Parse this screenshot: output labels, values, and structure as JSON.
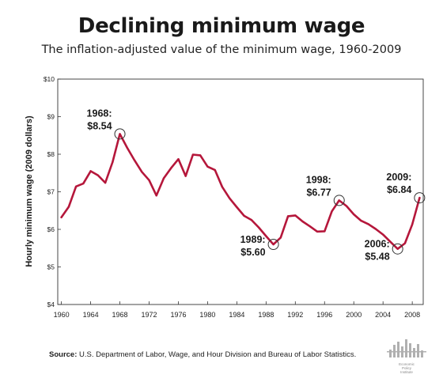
{
  "chart_data": {
    "type": "line",
    "title": "Declining minimum wage",
    "subtitle": "The inflation-adjusted value of the minimum wage, 1960-2009",
    "ylabel": "Hourly minimum wage (2009 dollars)",
    "xlabel": "",
    "xlim": [
      1959.5,
      2009.5
    ],
    "ylim": [
      4,
      10
    ],
    "x_ticks": [
      1960,
      1964,
      1968,
      1972,
      1976,
      1980,
      1984,
      1988,
      1992,
      1996,
      2000,
      2004,
      2008
    ],
    "y_ticks": [
      {
        "value": 4,
        "label": "$4"
      },
      {
        "value": 5,
        "label": "$5"
      },
      {
        "value": 6,
        "label": "$6"
      },
      {
        "value": 7,
        "label": "$7"
      },
      {
        "value": 8,
        "label": "$8"
      },
      {
        "value": 9,
        "label": "$9"
      },
      {
        "value": 10,
        "label": "$10"
      }
    ],
    "series": [
      {
        "color": "#b5173b",
        "x": [
          1960,
          1961,
          1962,
          1963,
          1964,
          1965,
          1966,
          1967,
          1968,
          1969,
          1970,
          1971,
          1972,
          1973,
          1974,
          1975,
          1976,
          1977,
          1978,
          1979,
          1980,
          1981,
          1982,
          1983,
          1984,
          1985,
          1986,
          1987,
          1988,
          1989,
          1990,
          1991,
          1992,
          1993,
          1994,
          1995,
          1996,
          1997,
          1998,
          1999,
          2000,
          2001,
          2002,
          2003,
          2004,
          2005,
          2006,
          2007,
          2008,
          2009
        ],
        "y": [
          6.32,
          6.6,
          7.14,
          7.22,
          7.55,
          7.44,
          7.24,
          7.79,
          8.54,
          8.17,
          7.84,
          7.53,
          7.31,
          6.9,
          7.36,
          7.63,
          7.87,
          7.42,
          7.99,
          7.97,
          7.67,
          7.58,
          7.13,
          6.83,
          6.59,
          6.36,
          6.25,
          6.05,
          5.82,
          5.6,
          5.78,
          6.35,
          6.37,
          6.21,
          6.08,
          5.94,
          5.95,
          6.48,
          6.77,
          6.62,
          6.4,
          6.23,
          6.14,
          6.01,
          5.86,
          5.67,
          5.48,
          5.63,
          6.13,
          6.84
        ]
      }
    ],
    "annotations": [
      {
        "year": "1968:",
        "value": "$8.54",
        "x": 1968,
        "y": 8.54,
        "side": "upper-left"
      },
      {
        "year": "1989:",
        "value": "$5.60",
        "x": 1989,
        "y": 5.6,
        "side": "lower-left"
      },
      {
        "year": "1998:",
        "value": "$6.77",
        "x": 1998,
        "y": 6.77,
        "side": "upper-left"
      },
      {
        "year": "2006:",
        "value": "$5.48",
        "x": 2006,
        "y": 5.48,
        "side": "lower-left"
      },
      {
        "year": "2009:",
        "value": "$6.84",
        "x": 2009,
        "y": 6.84,
        "side": "upper-left"
      }
    ],
    "grid": false,
    "legend": "none"
  },
  "source": {
    "label": "Source:",
    "text": " U.S. Department of Labor, Wage, and Hour Division and Bureau of Labor Statistics."
  },
  "logo": {
    "icon": "economic-policy-institute-logo-icon",
    "line1": "Economic",
    "line2": "Policy",
    "line3": "Institute"
  }
}
